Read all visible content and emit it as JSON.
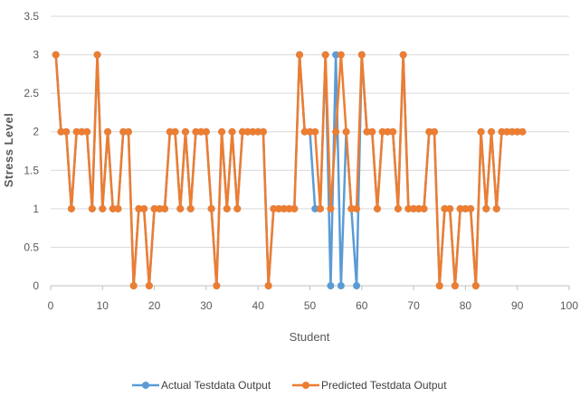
{
  "chart_data": {
    "type": "line",
    "xlabel": "Student",
    "ylabel": "Stress Level",
    "xlim": [
      0,
      100
    ],
    "ylim": [
      0,
      3.5
    ],
    "x_ticks": [
      "0",
      "10",
      "20",
      "30",
      "40",
      "50",
      "60",
      "70",
      "80",
      "90",
      "100"
    ],
    "y_ticks": [
      "0",
      "0.5",
      "1",
      "1.5",
      "2",
      "2.5",
      "3",
      "3.5"
    ],
    "grid": "horizontal",
    "legend_position": "bottom",
    "x": [
      1,
      2,
      3,
      4,
      5,
      6,
      7,
      8,
      9,
      10,
      11,
      12,
      13,
      14,
      15,
      16,
      17,
      18,
      19,
      20,
      21,
      22,
      23,
      24,
      25,
      26,
      27,
      28,
      29,
      30,
      31,
      32,
      33,
      34,
      35,
      36,
      37,
      38,
      39,
      40,
      41,
      42,
      43,
      44,
      45,
      46,
      47,
      48,
      49,
      50,
      51,
      52,
      53,
      54,
      55,
      56,
      57,
      58,
      59,
      60,
      61,
      62,
      63,
      64,
      65,
      66,
      67,
      68,
      69,
      70,
      71,
      72,
      73,
      74,
      75,
      76,
      77,
      78,
      79,
      80,
      81,
      82,
      83,
      84,
      85,
      86,
      87,
      88,
      89,
      90,
      91
    ],
    "series": [
      {
        "name": "Actual Testdata Output",
        "color": "#5b9bd5",
        "values": [
          3,
          2,
          2,
          1,
          2,
          2,
          2,
          1,
          3,
          1,
          2,
          1,
          1,
          2,
          2,
          0,
          1,
          1,
          0,
          1,
          1,
          1,
          2,
          2,
          1,
          2,
          1,
          2,
          2,
          2,
          1,
          0,
          2,
          1,
          2,
          1,
          2,
          2,
          2,
          2,
          2,
          0,
          1,
          1,
          1,
          1,
          1,
          3,
          2,
          2,
          1,
          1,
          3,
          0,
          3,
          0,
          2,
          1,
          0,
          3,
          2,
          2,
          1,
          2,
          2,
          2,
          1,
          3,
          1,
          1,
          1,
          1,
          2,
          2,
          0,
          1,
          1,
          0,
          1,
          1,
          1,
          0,
          2,
          1,
          2,
          1,
          2,
          2,
          2,
          2,
          2
        ]
      },
      {
        "name": "Predicted Testdata Output",
        "color": "#ed7d31",
        "values": [
          3,
          2,
          2,
          1,
          2,
          2,
          2,
          1,
          3,
          1,
          2,
          1,
          1,
          2,
          2,
          0,
          1,
          1,
          0,
          1,
          1,
          1,
          2,
          2,
          1,
          2,
          1,
          2,
          2,
          2,
          1,
          0,
          2,
          1,
          2,
          1,
          2,
          2,
          2,
          2,
          2,
          0,
          1,
          1,
          1,
          1,
          1,
          3,
          2,
          2,
          2,
          1,
          3,
          1,
          2,
          3,
          2,
          1,
          1,
          3,
          2,
          2,
          1,
          2,
          2,
          2,
          1,
          3,
          1,
          1,
          1,
          1,
          2,
          2,
          0,
          1,
          1,
          0,
          1,
          1,
          1,
          0,
          2,
          1,
          2,
          1,
          2,
          2,
          2,
          2,
          2
        ]
      }
    ]
  }
}
